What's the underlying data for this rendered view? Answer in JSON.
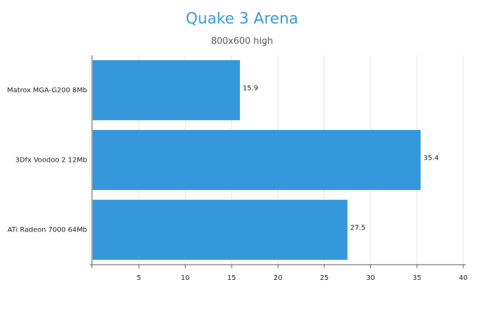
{
  "chart_data": {
    "type": "bar",
    "orientation": "horizontal",
    "title": "Quake 3 Arena",
    "subtitle": "800x600 high",
    "categories": [
      "Matrox MGA-G200 8Mb",
      "3Dfx Voodoo 2 12Mb",
      "ATi Radeon 7000 64Mb"
    ],
    "values": [
      15.9,
      35.4,
      27.5
    ],
    "color": "#3498db",
    "xlim": [
      0,
      40
    ],
    "xticks": [
      5,
      10,
      15,
      20,
      25,
      30,
      35,
      40
    ],
    "grid": true
  }
}
